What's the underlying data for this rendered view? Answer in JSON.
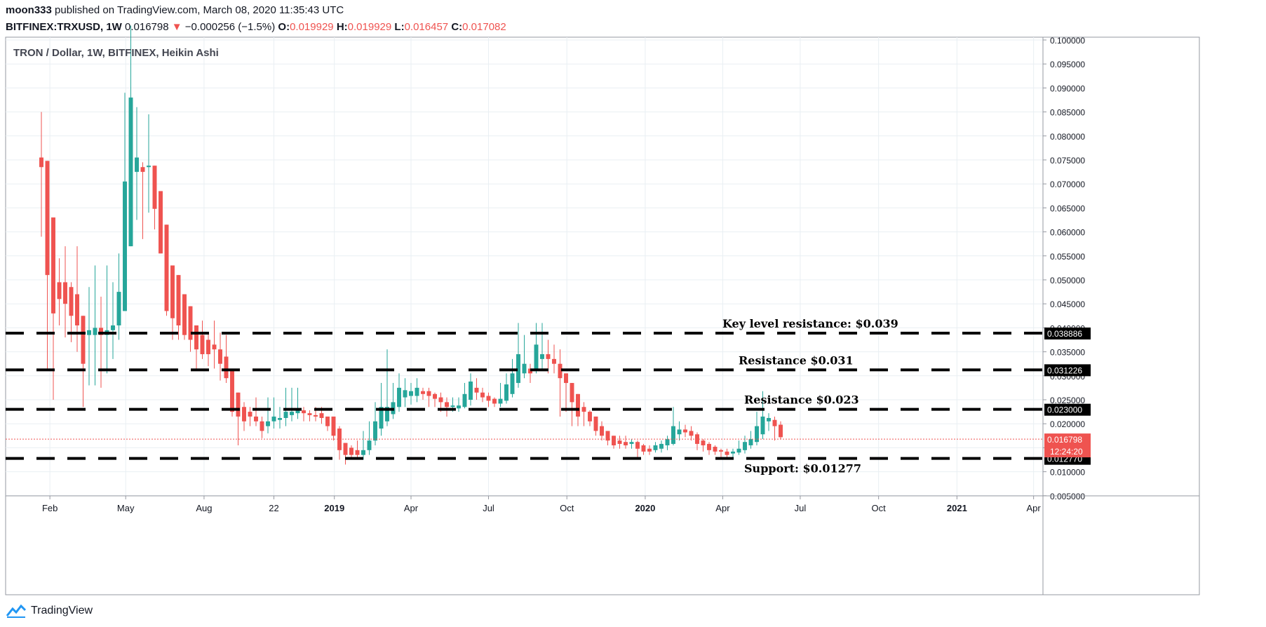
{
  "header": {
    "author": "moon333",
    "published_text": "published on TradingView.com, March 08, 2020 11:35:43 UTC",
    "symbol": "BITFINEX:TRXUSD, 1W",
    "last": "0.016798",
    "change_arrow": "▼",
    "change": "−0.000256 (−1.5%)",
    "o_label": "O:",
    "o_value": "0.019929",
    "h_label": "H:",
    "h_value": "0.019929",
    "l_label": "L:",
    "l_value": "0.016457",
    "c_label": "C:",
    "c_value": "0.017082"
  },
  "footer": {
    "brand": "TradingView"
  },
  "colors": {
    "up": "#26a69a",
    "down": "#ef5350",
    "grid": "#e9eff3",
    "text": "#131722"
  },
  "chart_data": {
    "type": "candlestick",
    "title": "TRON / Dollar, 1W, BITFINEX, Heikin Ashi",
    "ylim": [
      0.005,
      0.1
    ],
    "y_ticks": [
      "0.100000",
      "0.095000",
      "0.090000",
      "0.085000",
      "0.080000",
      "0.075000",
      "0.070000",
      "0.065000",
      "0.060000",
      "0.055000",
      "0.050000",
      "0.045000",
      "0.040000",
      "0.035000",
      "0.030000",
      "0.025000",
      "0.020000",
      "0.015000",
      "0.010000",
      "0.005000"
    ],
    "y_tick_values": [
      0.1,
      0.095,
      0.09,
      0.085,
      0.08,
      0.075,
      0.07,
      0.065,
      0.06,
      0.055,
      0.05,
      0.045,
      0.04,
      0.035,
      0.03,
      0.025,
      0.02,
      0.015,
      0.01,
      0.005
    ],
    "x_range": [
      "2017-12-11",
      "2021-04-12"
    ],
    "x_ticks": [
      {
        "label": "Feb",
        "date": "2018-02-01",
        "bold": false
      },
      {
        "label": "May",
        "date": "2018-05-01",
        "bold": false
      },
      {
        "label": "Aug",
        "date": "2018-08-01",
        "bold": false
      },
      {
        "label": "22",
        "date": "2018-10-22",
        "bold": false
      },
      {
        "label": "2019",
        "date": "2019-01-01",
        "bold": true
      },
      {
        "label": "Apr",
        "date": "2019-04-01",
        "bold": false
      },
      {
        "label": "Jul",
        "date": "2019-07-01",
        "bold": false
      },
      {
        "label": "Oct",
        "date": "2019-10-01",
        "bold": false
      },
      {
        "label": "2020",
        "date": "2020-01-01",
        "bold": true
      },
      {
        "label": "Apr",
        "date": "2020-04-01",
        "bold": false
      },
      {
        "label": "Jul",
        "date": "2020-07-01",
        "bold": false
      },
      {
        "label": "Oct",
        "date": "2020-10-01",
        "bold": false
      },
      {
        "label": "2021",
        "date": "2021-01-01",
        "bold": true
      },
      {
        "label": "Apr",
        "date": "2021-04-01",
        "bold": false
      }
    ],
    "first_candle_date": "2018-01-22",
    "candle_interval_days": 7,
    "candles": [
      [
        0.0755,
        0.0735,
        0.085,
        0.059
      ],
      [
        0.0748,
        0.051,
        0.0748,
        0.031
      ],
      [
        0.063,
        0.043,
        0.063,
        0.025
      ],
      [
        0.0495,
        0.046,
        0.0545,
        0.0405
      ],
      [
        0.0495,
        0.045,
        0.057,
        0.038
      ],
      [
        0.0485,
        0.0425,
        0.0495,
        0.037
      ],
      [
        0.047,
        0.0405,
        0.057,
        0.035
      ],
      [
        0.0425,
        0.0325,
        0.0425,
        0.0235
      ],
      [
        0.0385,
        0.0395,
        0.0485,
        0.028
      ],
      [
        0.0385,
        0.04,
        0.053,
        0.028
      ],
      [
        0.04,
        0.0385,
        0.0465,
        0.0275
      ],
      [
        0.0385,
        0.0395,
        0.053,
        0.0305
      ],
      [
        0.0395,
        0.0405,
        0.0495,
        0.0335
      ],
      [
        0.0405,
        0.0475,
        0.0555,
        0.0375
      ],
      [
        0.0435,
        0.0705,
        0.089,
        0.0435
      ],
      [
        0.057,
        0.088,
        0.103,
        0.057
      ],
      [
        0.0725,
        0.0755,
        0.086,
        0.0625
      ],
      [
        0.0735,
        0.0725,
        0.0745,
        0.0585
      ],
      [
        0.0735,
        0.0738,
        0.0845,
        0.064
      ],
      [
        0.0738,
        0.0648,
        0.0738,
        0.0605
      ],
      [
        0.0685,
        0.0555,
        0.0685,
        0.0555
      ],
      [
        0.0615,
        0.0435,
        0.0615,
        0.0425
      ],
      [
        0.053,
        0.042,
        0.053,
        0.0375
      ],
      [
        0.051,
        0.0405,
        0.051,
        0.0375
      ],
      [
        0.047,
        0.0385,
        0.047,
        0.0375
      ],
      [
        0.0445,
        0.0375,
        0.0445,
        0.035
      ],
      [
        0.0405,
        0.0355,
        0.0405,
        0.031
      ],
      [
        0.0385,
        0.0345,
        0.0415,
        0.0335
      ],
      [
        0.0375,
        0.0345,
        0.039,
        0.032
      ],
      [
        0.0365,
        0.0355,
        0.0415,
        0.0315
      ],
      [
        0.0355,
        0.0325,
        0.039,
        0.029
      ],
      [
        0.034,
        0.0295,
        0.0385,
        0.0285
      ],
      [
        0.0315,
        0.0225,
        0.0315,
        0.0215
      ],
      [
        0.0265,
        0.0215,
        0.0265,
        0.0155
      ],
      [
        0.0235,
        0.0205,
        0.0245,
        0.0185
      ],
      [
        0.0225,
        0.0215,
        0.0235,
        0.0195
      ],
      [
        0.0215,
        0.0205,
        0.0255,
        0.0195
      ],
      [
        0.0205,
        0.0185,
        0.0215,
        0.017
      ],
      [
        0.0195,
        0.0205,
        0.0255,
        0.018
      ],
      [
        0.0205,
        0.0215,
        0.0255,
        0.019
      ],
      [
        0.0208,
        0.0212,
        0.0235,
        0.019
      ],
      [
        0.0212,
        0.0225,
        0.0275,
        0.0195
      ],
      [
        0.0218,
        0.0225,
        0.0275,
        0.0205
      ],
      [
        0.0222,
        0.0228,
        0.0275,
        0.021
      ],
      [
        0.0228,
        0.0222,
        0.0235,
        0.0205
      ],
      [
        0.0222,
        0.0218,
        0.0228,
        0.0205
      ],
      [
        0.0218,
        0.0215,
        0.0235,
        0.0205
      ],
      [
        0.0222,
        0.0212,
        0.0235,
        0.02
      ],
      [
        0.0215,
        0.0195,
        0.0215,
        0.0185
      ],
      [
        0.0215,
        0.0175,
        0.0215,
        0.0165
      ],
      [
        0.019,
        0.0145,
        0.0195,
        0.0125
      ],
      [
        0.016,
        0.0135,
        0.016,
        0.0115
      ],
      [
        0.015,
        0.0135,
        0.0155,
        0.0125
      ],
      [
        0.0145,
        0.0135,
        0.0165,
        0.0125
      ],
      [
        0.0135,
        0.0145,
        0.0185,
        0.0125
      ],
      [
        0.0145,
        0.0165,
        0.0205,
        0.0135
      ],
      [
        0.0165,
        0.0205,
        0.0245,
        0.0155
      ],
      [
        0.019,
        0.0235,
        0.0285,
        0.0175
      ],
      [
        0.0205,
        0.0235,
        0.0355,
        0.0195
      ],
      [
        0.022,
        0.0245,
        0.0285,
        0.021
      ],
      [
        0.0235,
        0.0275,
        0.0305,
        0.0225
      ],
      [
        0.0255,
        0.027,
        0.0295,
        0.0235
      ],
      [
        0.0258,
        0.0268,
        0.0285,
        0.024
      ],
      [
        0.0258,
        0.0275,
        0.0295,
        0.0245
      ],
      [
        0.0268,
        0.0262,
        0.0275,
        0.025
      ],
      [
        0.0268,
        0.0258,
        0.0275,
        0.0235
      ],
      [
        0.0262,
        0.0252,
        0.0265,
        0.0235
      ],
      [
        0.0255,
        0.0245,
        0.0265,
        0.0225
      ],
      [
        0.0245,
        0.0235,
        0.0255,
        0.0215
      ],
      [
        0.0235,
        0.0238,
        0.0255,
        0.0225
      ],
      [
        0.0232,
        0.0238,
        0.0255,
        0.0225
      ],
      [
        0.0235,
        0.0262,
        0.0285,
        0.0232
      ],
      [
        0.025,
        0.0288,
        0.0305,
        0.0238
      ],
      [
        0.0275,
        0.0265,
        0.0295,
        0.025
      ],
      [
        0.0265,
        0.0255,
        0.0275,
        0.0245
      ],
      [
        0.0258,
        0.0248,
        0.0265,
        0.0235
      ],
      [
        0.0252,
        0.0242,
        0.0255,
        0.0235
      ],
      [
        0.0242,
        0.0252,
        0.0285,
        0.0235
      ],
      [
        0.0248,
        0.0282,
        0.0305,
        0.0242
      ],
      [
        0.0262,
        0.0305,
        0.0335,
        0.0255
      ],
      [
        0.0285,
        0.0345,
        0.041,
        0.0275
      ],
      [
        0.0305,
        0.0325,
        0.0385,
        0.0295
      ],
      [
        0.0315,
        0.0305,
        0.0325,
        0.0285
      ],
      [
        0.0315,
        0.0365,
        0.041,
        0.0305
      ],
      [
        0.0335,
        0.0345,
        0.041,
        0.0315
      ],
      [
        0.0345,
        0.0335,
        0.0375,
        0.0305
      ],
      [
        0.0335,
        0.0325,
        0.0365,
        0.0305
      ],
      [
        0.0325,
        0.0295,
        0.0355,
        0.0215
      ],
      [
        0.0305,
        0.0285,
        0.0305,
        0.0225
      ],
      [
        0.0285,
        0.0245,
        0.0285,
        0.0195
      ],
      [
        0.0262,
        0.0215,
        0.0262,
        0.0195
      ],
      [
        0.0235,
        0.0225,
        0.0245,
        0.0195
      ],
      [
        0.0225,
        0.0205,
        0.0228,
        0.0195
      ],
      [
        0.0215,
        0.0185,
        0.0215,
        0.0175
      ],
      [
        0.0195,
        0.0175,
        0.0205,
        0.0165
      ],
      [
        0.0185,
        0.0165,
        0.0185,
        0.0155
      ],
      [
        0.0175,
        0.0155,
        0.0175,
        0.0148
      ],
      [
        0.0165,
        0.0158,
        0.0175,
        0.0148
      ],
      [
        0.0162,
        0.0155,
        0.0175,
        0.0148
      ],
      [
        0.0158,
        0.0162,
        0.0168,
        0.0148
      ],
      [
        0.0162,
        0.0148,
        0.0165,
        0.0125
      ],
      [
        0.0155,
        0.0142,
        0.0158,
        0.0135
      ],
      [
        0.0148,
        0.0142,
        0.0155,
        0.0135
      ],
      [
        0.0145,
        0.0155,
        0.0162,
        0.014
      ],
      [
        0.0148,
        0.0158,
        0.0165,
        0.014
      ],
      [
        0.0155,
        0.0168,
        0.0175,
        0.0145
      ],
      [
        0.0158,
        0.0195,
        0.0235,
        0.0155
      ],
      [
        0.0178,
        0.0188,
        0.0205,
        0.0165
      ],
      [
        0.0188,
        0.0182,
        0.0198,
        0.0172
      ],
      [
        0.0185,
        0.0175,
        0.0195,
        0.0165
      ],
      [
        0.0178,
        0.0158,
        0.0182,
        0.0145
      ],
      [
        0.0165,
        0.0155,
        0.0168,
        0.0142
      ],
      [
        0.0158,
        0.0145,
        0.0162,
        0.0135
      ],
      [
        0.0152,
        0.0142,
        0.0155,
        0.0135
      ],
      [
        0.0145,
        0.0142,
        0.0148,
        0.0128
      ],
      [
        0.0142,
        0.0135,
        0.0148,
        0.0128
      ],
      [
        0.0138,
        0.0142,
        0.0148,
        0.013
      ],
      [
        0.014,
        0.0148,
        0.0165,
        0.0135
      ],
      [
        0.0145,
        0.0162,
        0.0175,
        0.0138
      ],
      [
        0.0155,
        0.0168,
        0.0185,
        0.0148
      ],
      [
        0.0162,
        0.0195,
        0.0225,
        0.0155
      ],
      [
        0.0178,
        0.0215,
        0.0268,
        0.0168
      ],
      [
        0.0205,
        0.0212,
        0.0222,
        0.0185
      ],
      [
        0.0208,
        0.0195,
        0.0215,
        0.0165
      ],
      [
        0.0198,
        0.0172,
        0.0205,
        0.0168
      ]
    ],
    "levels": [
      {
        "label": "Key level resistance: $0.039",
        "value": 0.038886,
        "badge": "0.038886"
      },
      {
        "label": "Resistance $0.031",
        "value": 0.031226,
        "badge": "0.031226"
      },
      {
        "label": "Resistance $0.023",
        "value": 0.023,
        "badge": "0.023000"
      },
      {
        "label": "Support: $0.01277",
        "value": 0.01277,
        "badge": "0.012770"
      }
    ],
    "current_price": {
      "value": 0.016798,
      "label": "0.016798",
      "timer": "12:24:20"
    }
  }
}
